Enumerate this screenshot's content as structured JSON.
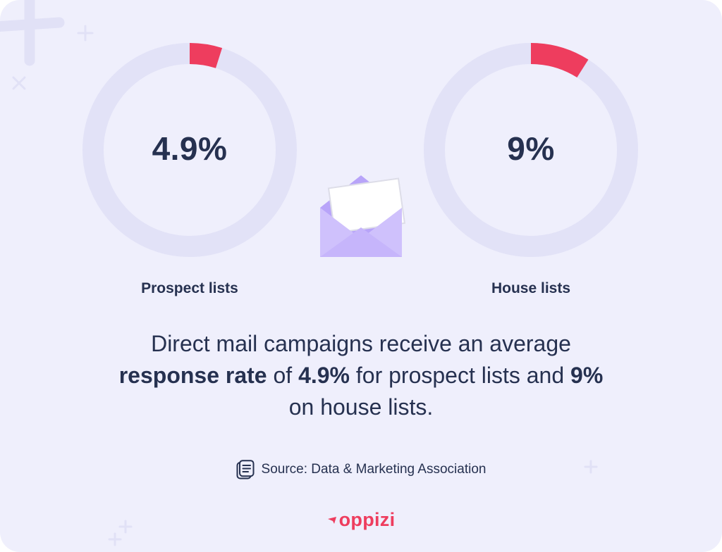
{
  "colors": {
    "background": "#efeffc",
    "track": "#e2e2f7",
    "highlight": "#ee3d5e",
    "text": "#263150",
    "envelope": "#c6b5fb"
  },
  "chart_data": {
    "type": "pie",
    "charts": [
      {
        "category": "Prospect lists",
        "value": 4.9,
        "value_label": "4.9%"
      },
      {
        "category": "House lists",
        "value": 9,
        "value_label": "9%"
      }
    ]
  },
  "statement": {
    "part1": "Direct mail campaigns receive an average ",
    "emph1": "response rate",
    "part2": " of ",
    "emph2": "4.9%",
    "part3": " for prospect lists and ",
    "emph3": "9%",
    "part4": " on house lists."
  },
  "source": {
    "icon": "document-icon",
    "text": "Source: Data & Marketing Association"
  },
  "logo": {
    "text": "oppizi"
  }
}
